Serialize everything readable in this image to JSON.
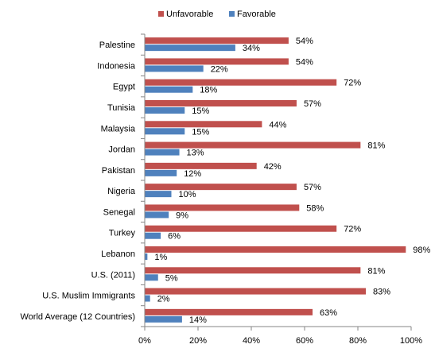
{
  "chart_data": {
    "type": "bar",
    "orientation": "horizontal",
    "categories": [
      "Palestine",
      "Indonesia",
      "Egypt",
      "Tunisia",
      "Malaysia",
      "Jordan",
      "Pakistan",
      "Nigeria",
      "Senegal",
      "Turkey",
      "Lebanon",
      "U.S. (2011)",
      "U.S. Muslim Immigrants",
      "World Average (12 Countries)"
    ],
    "series": [
      {
        "name": "Unfavorable",
        "color": "#C0504D",
        "values": [
          54,
          54,
          72,
          57,
          44,
          81,
          42,
          57,
          58,
          72,
          98,
          81,
          83,
          63
        ],
        "labels": [
          "54%",
          "54%",
          "72%",
          "57%",
          "44%",
          "81%",
          "42%",
          "57%",
          "58%",
          "72%",
          "98%",
          "81%",
          "83%",
          "63%"
        ]
      },
      {
        "name": "Favorable",
        "color": "#4F81BD",
        "values": [
          34,
          22,
          18,
          15,
          15,
          13,
          12,
          10,
          9,
          6,
          1,
          5,
          2,
          14
        ],
        "labels": [
          "34%",
          "22%",
          "18%",
          "15%",
          "15%",
          "13%",
          "12%",
          "10%",
          "9%",
          "6%",
          "1%",
          "5%",
          "2%",
          "14%"
        ]
      }
    ],
    "xlim": [
      0,
      100
    ],
    "xticks": [
      "0%",
      "20%",
      "40%",
      "60%",
      "80%",
      "100%"
    ],
    "xtick_values": [
      0,
      20,
      40,
      60,
      80,
      100
    ],
    "grid": false,
    "legend_position": "top"
  }
}
